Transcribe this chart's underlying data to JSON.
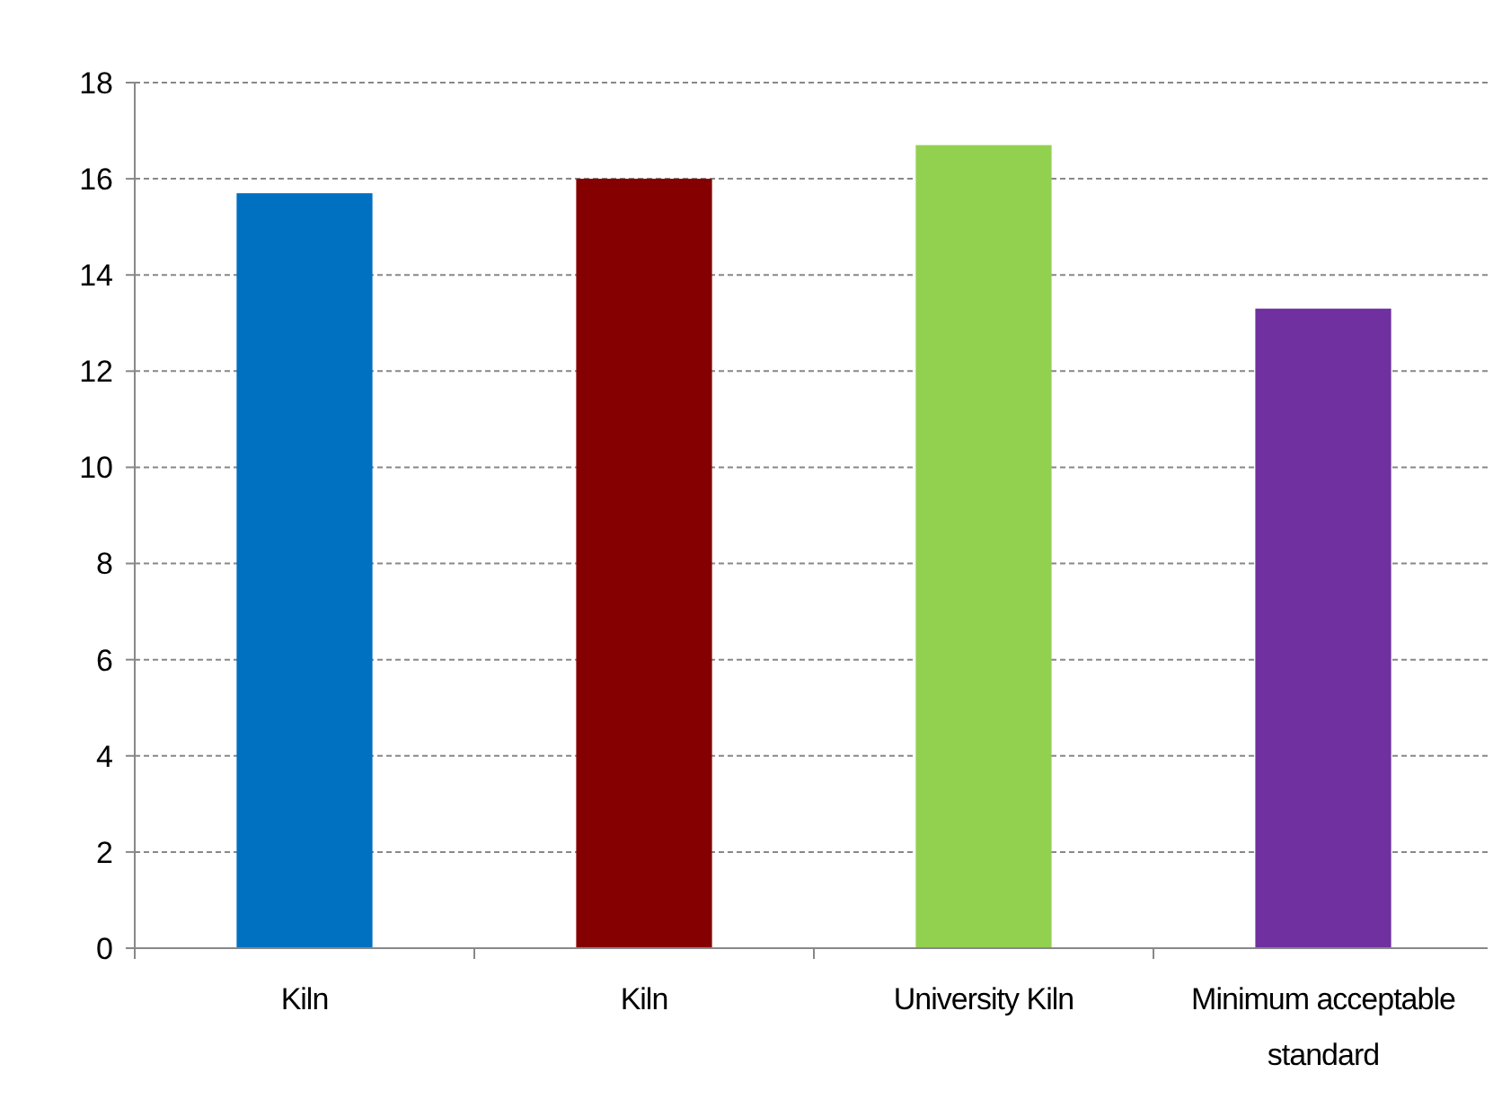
{
  "chart_data": {
    "type": "bar",
    "categories": [
      "Kiln",
      "Kiln",
      "University Kiln",
      "Minimum acceptable standard"
    ],
    "values": [
      15.7,
      16.0,
      16.7,
      13.3
    ],
    "colors": [
      "#0070c0",
      "#850000",
      "#92d050",
      "#7030a0"
    ],
    "ylim": [
      0,
      18
    ],
    "yticks": [
      0,
      2,
      4,
      6,
      8,
      10,
      12,
      14,
      16,
      18
    ],
    "grid": "y"
  }
}
